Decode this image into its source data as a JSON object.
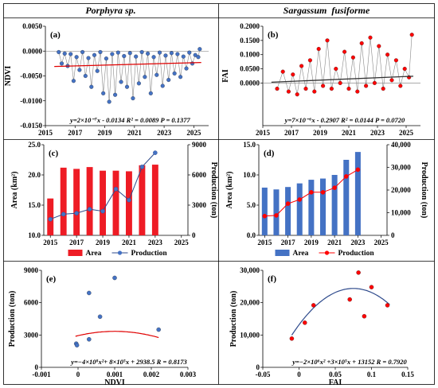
{
  "headers": [
    "Porphyra sp.",
    "Sargassum  fusiforme"
  ],
  "chart_data": [
    {
      "id": "a",
      "panel": "(a)",
      "type": "scatter",
      "ylabel": "NDVI",
      "xlim": [
        2015,
        2026
      ],
      "ylim": [
        -0.015,
        0.005
      ],
      "xticks": [
        2015,
        2017,
        2019,
        2021,
        2023,
        2025
      ],
      "yticks": [
        "0.0050",
        "0.0000",
        "-0.0050",
        "-0.0100",
        "-0.0150"
      ],
      "ytick_values": [
        0.005,
        0.0,
        -0.005,
        -0.01,
        -0.015
      ],
      "point_color": "#4472c4",
      "trend_color": "#e00000",
      "equation": "y=2×10⁻⁷x - 0.0134 R² = 0.0089 P = 0.1377",
      "trend": [
        [
          2015.6,
          -0.0031
        ],
        [
          2025.5,
          -0.0023
        ]
      ],
      "points": [
        [
          2015.9,
          -0.0002
        ],
        [
          2016.1,
          -0.0025
        ],
        [
          2016.3,
          -0.0005
        ],
        [
          2016.5,
          -0.003
        ],
        [
          2016.7,
          -0.0006
        ],
        [
          2016.9,
          -0.006
        ],
        [
          2017.1,
          -0.0012
        ],
        [
          2017.3,
          -0.0038
        ],
        [
          2017.5,
          -0.0002
        ],
        [
          2017.7,
          -0.005
        ],
        [
          2017.9,
          -0.0014
        ],
        [
          2018.1,
          -0.0072
        ],
        [
          2018.3,
          -0.0008
        ],
        [
          2018.5,
          -0.004
        ],
        [
          2018.7,
          -0.0002
        ],
        [
          2018.9,
          -0.0085
        ],
        [
          2019.1,
          -0.0015
        ],
        [
          2019.3,
          -0.0102
        ],
        [
          2019.5,
          -0.0006
        ],
        [
          2019.7,
          -0.0088
        ],
        [
          2019.9,
          -0.0003
        ],
        [
          2020.1,
          -0.0062
        ],
        [
          2020.3,
          -0.001
        ],
        [
          2020.5,
          -0.0072
        ],
        [
          2020.7,
          -0.0004
        ],
        [
          2020.9,
          -0.0095
        ],
        [
          2021.1,
          -0.0011
        ],
        [
          2021.3,
          -0.0065
        ],
        [
          2021.5,
          -0.0002
        ],
        [
          2021.7,
          -0.0052
        ],
        [
          2021.9,
          -0.0005
        ],
        [
          2022.1,
          -0.0085
        ],
        [
          2022.3,
          -0.0012
        ],
        [
          2022.5,
          -0.0048
        ],
        [
          2022.7,
          -0.0003
        ],
        [
          2022.9,
          -0.007
        ],
        [
          2023.1,
          -0.0009
        ],
        [
          2023.3,
          -0.0058
        ],
        [
          2023.5,
          -0.0004
        ],
        [
          2023.7,
          -0.0045
        ],
        [
          2023.9,
          -0.0006
        ],
        [
          2024.1,
          -0.0052
        ],
        [
          2024.3,
          -0.0011
        ],
        [
          2024.5,
          -0.0035
        ],
        [
          2024.7,
          -0.0003
        ],
        [
          2024.9,
          -0.0025
        ],
        [
          2025.1,
          -0.0008
        ],
        [
          2025.3,
          -0.0012
        ],
        [
          2025.4,
          0.0004
        ]
      ]
    },
    {
      "id": "b",
      "panel": "(b)",
      "type": "scatter",
      "ylabel": "FAI",
      "xlim": [
        2015,
        2026
      ],
      "ylim": [
        -0.15,
        0.2
      ],
      "xticks": [
        2015,
        2017,
        2019,
        2021,
        2023,
        2025
      ],
      "yticks": [
        "0.2000",
        "0.1500",
        "0.1000",
        "0.0500",
        "0.0000"
      ],
      "ytick_values": [
        0.2,
        0.15,
        0.1,
        0.05,
        0.0
      ],
      "point_color": "#ff0000",
      "trend_color": "#333333",
      "equation": "y=7×10⁻⁶x - 0.2907 R² = 0.0144 P = 0.0720",
      "trend": [
        [
          2015.6,
          0.003
        ],
        [
          2025.5,
          0.024
        ]
      ],
      "points": [
        [
          2016.0,
          -0.02
        ],
        [
          2016.4,
          0.04
        ],
        [
          2016.8,
          -0.03
        ],
        [
          2017.1,
          0.03
        ],
        [
          2017.4,
          -0.04
        ],
        [
          2017.7,
          0.06
        ],
        [
          2018.0,
          -0.02
        ],
        [
          2018.3,
          0.08
        ],
        [
          2018.6,
          -0.03
        ],
        [
          2018.9,
          0.12
        ],
        [
          2019.2,
          -0.01
        ],
        [
          2019.5,
          0.15
        ],
        [
          2019.8,
          -0.02
        ],
        [
          2020.1,
          0.05
        ],
        [
          2020.4,
          0.0
        ],
        [
          2020.7,
          0.11
        ],
        [
          2021.0,
          -0.02
        ],
        [
          2021.3,
          0.09
        ],
        [
          2021.6,
          -0.03
        ],
        [
          2021.9,
          0.14
        ],
        [
          2022.2,
          -0.01
        ],
        [
          2022.5,
          0.16
        ],
        [
          2022.8,
          0.0
        ],
        [
          2023.1,
          0.13
        ],
        [
          2023.4,
          -0.02
        ],
        [
          2023.7,
          0.1
        ],
        [
          2024.0,
          0.01
        ],
        [
          2024.3,
          0.08
        ],
        [
          2024.6,
          -0.01
        ],
        [
          2024.9,
          0.05
        ],
        [
          2025.2,
          0.02
        ],
        [
          2025.4,
          0.17
        ]
      ]
    },
    {
      "id": "c",
      "panel": "(c)",
      "type": "bar",
      "ylabel": "Area (km²)",
      "y2label": "Production (ton)",
      "xlim": [
        2014.5,
        2025.5
      ],
      "ylim": [
        10,
        25
      ],
      "y2lim": [
        0,
        9000
      ],
      "xticks": [
        2015,
        2017,
        2019,
        2021,
        2023,
        2025
      ],
      "yticks": [
        "25.0",
        "20.0",
        "15.0",
        "10.0"
      ],
      "ytick_values": [
        25,
        20,
        15,
        10
      ],
      "y2ticks": [
        "9000",
        "6000",
        "3000",
        "0"
      ],
      "y2tick_values": [
        9000,
        6000,
        3000,
        0
      ],
      "bar_color": "#ee1c25",
      "line_color": "#2e4a8c",
      "marker_color": "#4472c4",
      "years": [
        2015,
        2016,
        2017,
        2018,
        2019,
        2020,
        2021,
        2022,
        2023
      ],
      "area": [
        16.1,
        21.2,
        21.0,
        21.3,
        20.7,
        20.7,
        20.6,
        21.6,
        21.7
      ],
      "production": [
        1600,
        2100,
        2200,
        2600,
        2400,
        4600,
        3500,
        6800,
        8200
      ],
      "legend": [
        "Area",
        "Production"
      ]
    },
    {
      "id": "d",
      "panel": "(d)",
      "type": "bar",
      "ylabel": "Area (km²)",
      "y2label": "Production (ton)",
      "xlim": [
        2014.5,
        2025.5
      ],
      "ylim": [
        0,
        15
      ],
      "y2lim": [
        0,
        40000
      ],
      "xticks": [
        2015,
        2017,
        2019,
        2021,
        2023,
        2025
      ],
      "yticks": [
        "15.0",
        "10.0",
        "5.0",
        "0.0"
      ],
      "ytick_values": [
        15,
        10,
        5,
        0
      ],
      "y2ticks": [
        "40,000",
        "30,000",
        "20,000",
        "10,000",
        "0"
      ],
      "y2tick_values": [
        40000,
        30000,
        20000,
        10000,
        0
      ],
      "bar_color": "#4472c4",
      "line_color": "#ff0000",
      "marker_color": "#ff0000",
      "years": [
        2015,
        2016,
        2017,
        2018,
        2019,
        2020,
        2021,
        2022,
        2023
      ],
      "area": [
        7.9,
        7.6,
        8.0,
        8.6,
        9.2,
        9.4,
        10.0,
        12.5,
        13.8
      ],
      "production": [
        8500,
        8800,
        14000,
        15800,
        19000,
        19000,
        21000,
        26000,
        29000
      ],
      "legend": [
        "Area",
        "Production"
      ]
    },
    {
      "id": "e",
      "panel": "(e)",
      "type": "scatter",
      "xlabel": "NDVI",
      "ylabel": "Production (ton)",
      "xlim": [
        -0.001,
        0.003
      ],
      "ylim": [
        0,
        9000
      ],
      "xticks": [
        "-0.001",
        "0",
        "0.001",
        "0.002",
        "0.003"
      ],
      "xtick_values": [
        -0.001,
        0,
        0.001,
        0.002,
        0.003
      ],
      "yticks": [
        "9000",
        "6000",
        "3000",
        "0"
      ],
      "ytick_values": [
        9000,
        6000,
        3000,
        0
      ],
      "point_color": "#4472c4",
      "fit_color": "#e00000",
      "equation": "y=−4×10⁸x²+ 8×10⁵x + 2938.5 R = 0.8173",
      "fit": {
        "a": -400000000,
        "b": 800000,
        "c": 2938.5,
        "x0": -7e-05,
        "x1": 0.0022
      },
      "points": [
        [
          -5e-05,
          2200
        ],
        [
          -3e-05,
          2050
        ],
        [
          0.0003,
          2600
        ],
        [
          0.0003,
          6900
        ],
        [
          0.0006,
          4700
        ],
        [
          0.001,
          8300
        ],
        [
          0.0022,
          3500
        ]
      ]
    },
    {
      "id": "f",
      "panel": "(f)",
      "type": "scatter",
      "xlabel": "FAI",
      "ylabel": "Production (ton)",
      "xlim": [
        -0.05,
        0.15
      ],
      "ylim": [
        0,
        30000
      ],
      "xticks": [
        "-0.05",
        "0",
        "0.05",
        "0.1",
        "0.15"
      ],
      "xtick_values": [
        -0.05,
        0,
        0.05,
        0.1,
        0.15
      ],
      "yticks": [
        "30,000",
        "20,000",
        "10,000",
        "0"
      ],
      "ytick_values": [
        30000,
        20000,
        10000,
        0
      ],
      "point_color": "#ff0000",
      "fit_color": "#2e4a8c",
      "equation": "y=−2×10⁶x² +3×10⁵x + 13152 R = 0.7920",
      "fit": {
        "a": -2000000,
        "b": 300000,
        "c": 13152,
        "x0": -0.01,
        "x1": 0.125
      },
      "points": [
        [
          -0.01,
          8900
        ],
        [
          0.008,
          13800
        ],
        [
          0.02,
          19200
        ],
        [
          0.07,
          21000
        ],
        [
          0.082,
          29300
        ],
        [
          0.09,
          15800
        ],
        [
          0.1,
          24800
        ],
        [
          0.122,
          19200
        ]
      ]
    }
  ]
}
